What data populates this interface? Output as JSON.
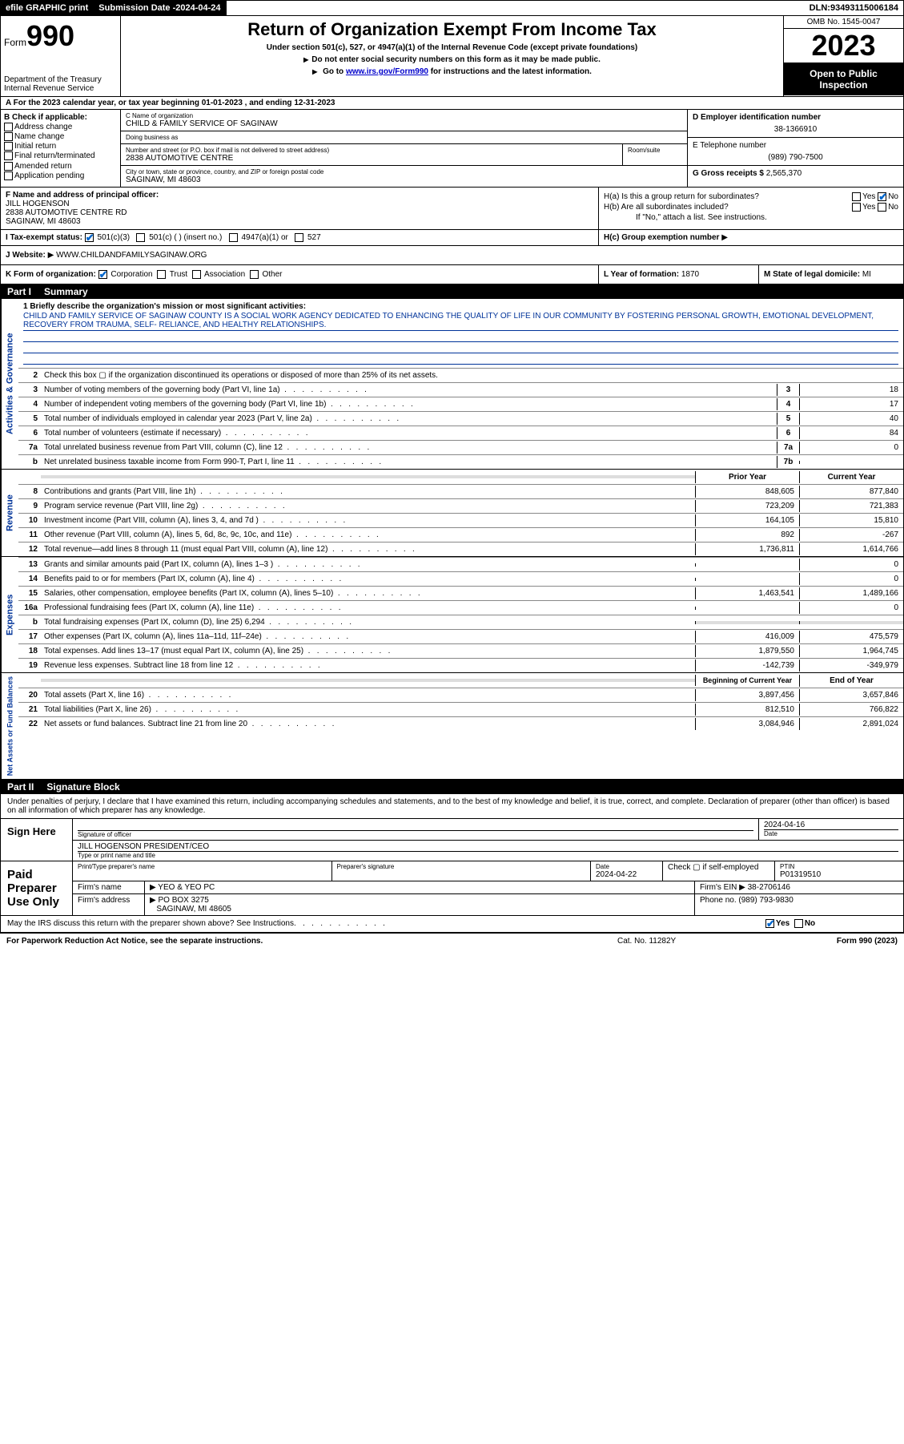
{
  "topbar": {
    "efile": "efile GRAPHIC print",
    "submission_label": "Submission Date - ",
    "submission_date": "2024-04-24",
    "dln_label": "DLN: ",
    "dln": "93493115006184"
  },
  "header": {
    "form_word": "Form",
    "form_num": "990",
    "dept": "Department of the Treasury\nInternal Revenue Service",
    "title": "Return of Organization Exempt From Income Tax",
    "sub1": "Under section 501(c), 527, or 4947(a)(1) of the Internal Revenue Code (except private foundations)",
    "sub2": "Do not enter social security numbers on this form as it may be made public.",
    "sub3_pre": "Go to ",
    "sub3_link": "www.irs.gov/Form990",
    "sub3_post": " for instructions and the latest information.",
    "omb": "OMB No. 1545-0047",
    "year": "2023",
    "inspect": "Open to Public Inspection"
  },
  "row_a": "A  For the 2023 calendar year, or tax year beginning 01-01-2023    , and ending 12-31-2023",
  "box_b": {
    "label": "B Check if applicable:",
    "opts": [
      "Address change",
      "Name change",
      "Initial return",
      "Final return/terminated",
      "Amended return",
      "Application pending"
    ]
  },
  "box_c": {
    "name_label": "C Name of organization",
    "name": "CHILD & FAMILY SERVICE OF SAGINAW",
    "dba_label": "Doing business as",
    "dba": "",
    "street_label": "Number and street (or P.O. box if mail is not delivered to street address)",
    "room_label": "Room/suite",
    "street": "2838 AUTOMOTIVE CENTRE",
    "city_label": "City or town, state or province, country, and ZIP or foreign postal code",
    "city": "SAGINAW, MI  48603"
  },
  "box_d": {
    "label": "D Employer identification number",
    "value": "38-1366910"
  },
  "box_e": {
    "label": "E Telephone number",
    "value": "(989) 790-7500"
  },
  "box_g": {
    "label": "G Gross receipts $ ",
    "value": "2,565,370"
  },
  "box_f": {
    "label": "F Name and address of principal officer:",
    "name": "JILL HOGENSON",
    "addr1": "2838 AUTOMOTIVE CENTRE RD",
    "addr2": "SAGINAW, MI  48603"
  },
  "box_h": {
    "a": "H(a)  Is this a group return for subordinates?",
    "a_yes": "Yes",
    "a_no": "No",
    "b": "H(b)  Are all subordinates included?",
    "b_yes": "Yes",
    "b_no": "No",
    "b_note": "If \"No,\" attach a list. See instructions.",
    "c": "H(c)  Group exemption number"
  },
  "row_i": {
    "label": "I    Tax-exempt status:",
    "o1": "501(c)(3)",
    "o2": "501(c) (  ) (insert no.)",
    "o3": "4947(a)(1) or",
    "o4": "527"
  },
  "row_j": {
    "label": "J    Website:",
    "value": "WWW.CHILDANDFAMILYSAGINAW.ORG"
  },
  "row_k": {
    "label": "K Form of organization:",
    "o1": "Corporation",
    "o2": "Trust",
    "o3": "Association",
    "o4": "Other"
  },
  "row_l": {
    "label": "L Year of formation: ",
    "value": "1870"
  },
  "row_m": {
    "label": "M State of legal domicile: ",
    "value": "MI"
  },
  "part1": {
    "num": "Part I",
    "title": "Summary"
  },
  "mission": {
    "q": "1   Briefly describe the organization's mission or most significant activities:",
    "text": "CHILD AND FAMILY SERVICE OF SAGINAW COUNTY IS A SOCIAL WORK AGENCY DEDICATED TO ENHANCING THE QUALITY OF LIFE IN OUR COMMUNITY BY FOSTERING PERSONAL GROWTH, EMOTIONAL DEVELOPMENT, RECOVERY FROM TRAUMA, SELF- RELIANCE, AND HEALTHY RELATIONSHIPS."
  },
  "vlabels": {
    "gov": "Activities & Governance",
    "rev": "Revenue",
    "exp": "Expenses",
    "net": "Net Assets or Fund Balances"
  },
  "gov_lines": [
    {
      "n": "2",
      "d": "Check this box   ▢   if the organization discontinued its operations or disposed of more than 25% of its net assets."
    },
    {
      "n": "3",
      "d": "Number of voting members of the governing body (Part VI, line 1a)",
      "box": "3",
      "v": "18"
    },
    {
      "n": "4",
      "d": "Number of independent voting members of the governing body (Part VI, line 1b)",
      "box": "4",
      "v": "17"
    },
    {
      "n": "5",
      "d": "Total number of individuals employed in calendar year 2023 (Part V, line 2a)",
      "box": "5",
      "v": "40"
    },
    {
      "n": "6",
      "d": "Total number of volunteers (estimate if necessary)",
      "box": "6",
      "v": "84"
    },
    {
      "n": "7a",
      "d": "Total unrelated business revenue from Part VIII, column (C), line 12",
      "box": "7a",
      "v": "0"
    },
    {
      "n": "b",
      "d": "Net unrelated business taxable income from Form 990-T, Part I, line 11",
      "box": "7b",
      "v": ""
    }
  ],
  "cols": {
    "prior": "Prior Year",
    "current": "Current Year"
  },
  "rev_lines": [
    {
      "n": "8",
      "d": "Contributions and grants (Part VIII, line 1h)",
      "p": "848,605",
      "c": "877,840"
    },
    {
      "n": "9",
      "d": "Program service revenue (Part VIII, line 2g)",
      "p": "723,209",
      "c": "721,383"
    },
    {
      "n": "10",
      "d": "Investment income (Part VIII, column (A), lines 3, 4, and 7d )",
      "p": "164,105",
      "c": "15,810"
    },
    {
      "n": "11",
      "d": "Other revenue (Part VIII, column (A), lines 5, 6d, 8c, 9c, 10c, and 11e)",
      "p": "892",
      "c": "-267"
    },
    {
      "n": "12",
      "d": "Total revenue—add lines 8 through 11 (must equal Part VIII, column (A), line 12)",
      "p": "1,736,811",
      "c": "1,614,766"
    }
  ],
  "exp_lines": [
    {
      "n": "13",
      "d": "Grants and similar amounts paid (Part IX, column (A), lines 1–3 )",
      "p": "",
      "c": "0"
    },
    {
      "n": "14",
      "d": "Benefits paid to or for members (Part IX, column (A), line 4)",
      "p": "",
      "c": "0"
    },
    {
      "n": "15",
      "d": "Salaries, other compensation, employee benefits (Part IX, column (A), lines 5–10)",
      "p": "1,463,541",
      "c": "1,489,166"
    },
    {
      "n": "16a",
      "d": "Professional fundraising fees (Part IX, column (A), line 11e)",
      "p": "",
      "c": "0"
    },
    {
      "n": "b",
      "d": "Total fundraising expenses (Part IX, column (D), line 25) 6,294",
      "p": "grey",
      "c": "grey"
    },
    {
      "n": "17",
      "d": "Other expenses (Part IX, column (A), lines 11a–11d, 11f–24e)",
      "p": "416,009",
      "c": "475,579"
    },
    {
      "n": "18",
      "d": "Total expenses. Add lines 13–17 (must equal Part IX, column (A), line 25)",
      "p": "1,879,550",
      "c": "1,964,745"
    },
    {
      "n": "19",
      "d": "Revenue less expenses. Subtract line 18 from line 12",
      "p": "-142,739",
      "c": "-349,979"
    }
  ],
  "net_cols": {
    "begin": "Beginning of Current Year",
    "end": "End of Year"
  },
  "net_lines": [
    {
      "n": "20",
      "d": "Total assets (Part X, line 16)",
      "p": "3,897,456",
      "c": "3,657,846"
    },
    {
      "n": "21",
      "d": "Total liabilities (Part X, line 26)",
      "p": "812,510",
      "c": "766,822"
    },
    {
      "n": "22",
      "d": "Net assets or fund balances. Subtract line 21 from line 20",
      "p": "3,084,946",
      "c": "2,891,024"
    }
  ],
  "part2": {
    "num": "Part II",
    "title": "Signature Block"
  },
  "sig_intro": "Under penalties of perjury, I declare that I have examined this return, including accompanying schedules and statements, and to the best of my knowledge and belief, it is true, correct, and complete. Declaration of preparer (other than officer) is based on all information of which preparer has any knowledge.",
  "sign_here": {
    "label": "Sign Here",
    "sig_label": "Signature of officer",
    "date_label": "Date",
    "date": "2024-04-16",
    "name": "JILL HOGENSON  PRESIDENT/CEO",
    "name_label": "Type or print name and title"
  },
  "paid": {
    "label": "Paid Preparer Use Only",
    "col1": "Print/Type preparer's name",
    "col2": "Preparer's signature",
    "col3_label": "Date",
    "col3": "2024-04-22",
    "col4": "Check  ▢  if self-employed",
    "col5_label": "PTIN",
    "col5": "P01319510",
    "firm_name_label": "Firm's name",
    "firm_name": "YEO & YEO PC",
    "firm_ein_label": "Firm's EIN",
    "firm_ein": "38-2706146",
    "firm_addr_label": "Firm's address",
    "firm_addr1": "PO BOX 3275",
    "firm_addr2": "SAGINAW, MI  48605",
    "phone_label": "Phone no. ",
    "phone": "(989) 793-9830"
  },
  "discuss": {
    "q": "May the IRS discuss this return with the preparer shown above? See Instructions.",
    "yes": "Yes",
    "no": "No"
  },
  "footer": {
    "left": "For Paperwork Reduction Act Notice, see the separate instructions.",
    "mid": "Cat. No. 11282Y",
    "right": "Form 990 (2023)"
  }
}
